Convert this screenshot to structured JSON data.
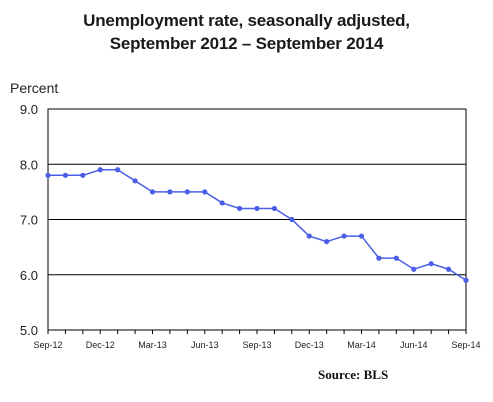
{
  "chart_data": {
    "type": "line",
    "title_line1": "Unemployment rate, seasonally adjusted,",
    "title_line2": "September 2012 – September 2014",
    "ylabel": "Percent",
    "xlabel": "",
    "source": "Source:  BLS",
    "ylim": [
      5.0,
      9.0
    ],
    "yticks": [
      "9.0",
      "8.0",
      "7.0",
      "6.0",
      "5.0"
    ],
    "ytick_values": [
      9.0,
      8.0,
      7.0,
      6.0,
      5.0
    ],
    "grid": "horizontal",
    "x_tick_labels": [
      "Sep-12",
      "Dec-12",
      "Mar-13",
      "Jun-13",
      "Sep-13",
      "Dec-13",
      "Mar-14",
      "Jun-14",
      "Sep-14"
    ],
    "x_tick_indices": [
      0,
      3,
      6,
      9,
      12,
      15,
      18,
      21,
      24
    ],
    "series": [
      {
        "values": [
          7.8,
          7.8,
          7.8,
          7.9,
          7.9,
          7.7,
          7.5,
          7.5,
          7.5,
          7.5,
          7.3,
          7.2,
          7.2,
          7.2,
          7.0,
          6.7,
          6.6,
          6.7,
          6.7,
          6.3,
          6.3,
          6.1,
          6.2,
          6.1,
          5.9
        ],
        "color": "#4a5ee8"
      }
    ]
  }
}
